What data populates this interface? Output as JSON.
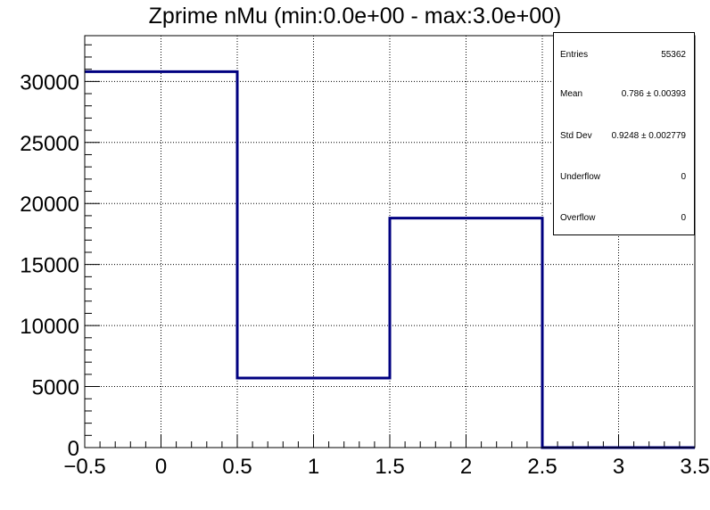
{
  "chart_data": {
    "type": "histogram",
    "title": "Zprime nMu (min:0.0e+00 - max:3.0e+00)",
    "xlim": [
      -0.5,
      3.5
    ],
    "ylim": [
      0,
      33750
    ],
    "grid": true,
    "line_color": "#000080",
    "x_ticks": [
      -0.5,
      0,
      0.5,
      1,
      1.5,
      2,
      2.5,
      3,
      3.5
    ],
    "x_tick_labels": [
      "−0.5",
      "0",
      "0.5",
      "1",
      "1.5",
      "2",
      "2.5",
      "3",
      "3.5"
    ],
    "y_ticks": [
      0,
      5000,
      10000,
      15000,
      20000,
      25000,
      30000
    ],
    "y_tick_labels": [
      "0",
      "5000",
      "10000",
      "15000",
      "20000",
      "25000",
      "30000"
    ],
    "bins": [
      {
        "low": -0.5,
        "high": 0.5,
        "value": 30800
      },
      {
        "low": 0.5,
        "high": 1.5,
        "value": 5700
      },
      {
        "low": 1.5,
        "high": 2.5,
        "value": 18800
      },
      {
        "low": 2.5,
        "high": 3.5,
        "value": 0
      }
    ]
  },
  "stats_box": {
    "entries_label": "Entries",
    "entries_value": "55362",
    "mean_label": "Mean",
    "mean_value": "0.786 ± 0.00393",
    "stddev_label": "Std Dev",
    "stddev_value": "0.9248 ± 0.002779",
    "underflow_label": "Underflow",
    "underflow_value": "0",
    "overflow_label": "Overflow",
    "overflow_value": "0"
  }
}
